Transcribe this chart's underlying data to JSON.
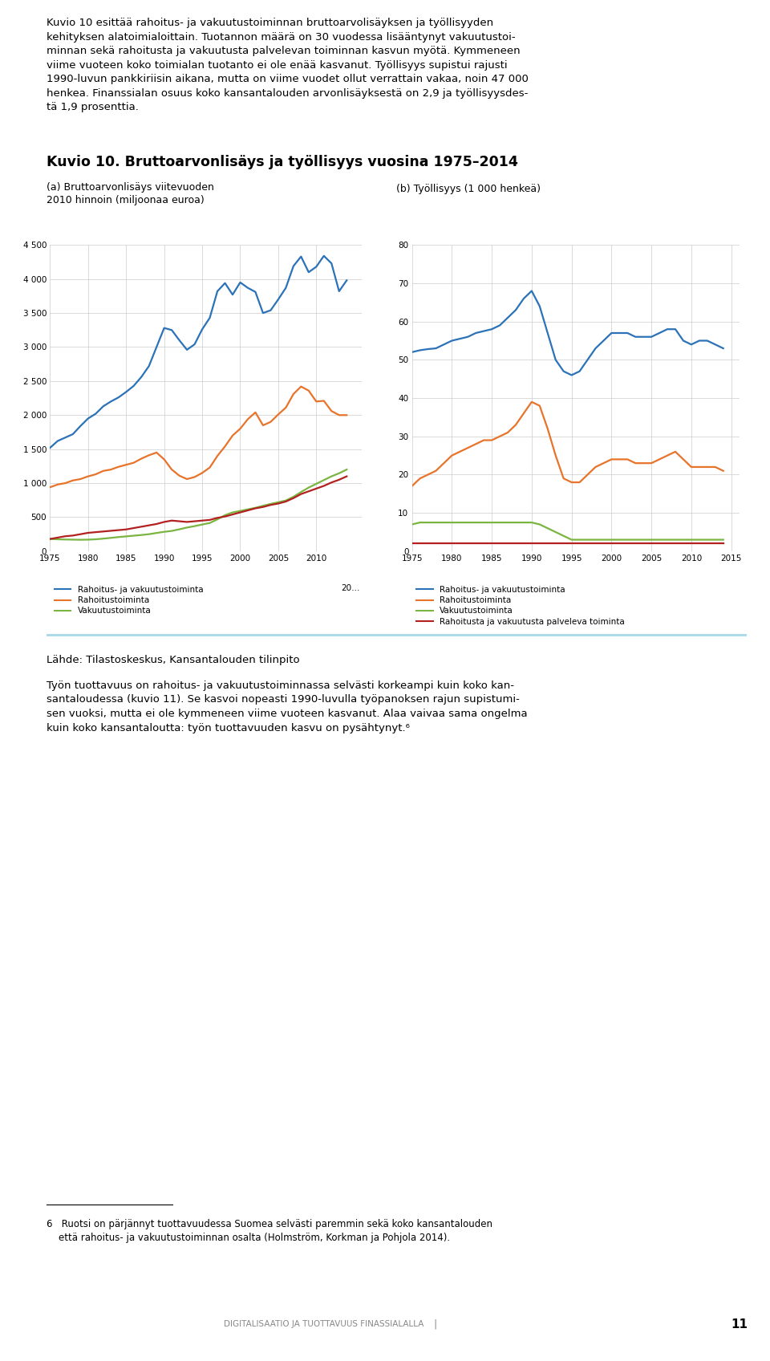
{
  "title": "Kuvio 10. Bruttoarvonlisäys ja työllisyys vuosina 1975–2014",
  "subtitle_a": "(a) Bruttoarvonlisäys viitevuoden\n2010 hinnoin (miljoonaa euroa)",
  "subtitle_b": "(b) Työllisyys (1 000 henkeä)",
  "years": [
    1975,
    1976,
    1977,
    1978,
    1979,
    1980,
    1981,
    1982,
    1983,
    1984,
    1985,
    1986,
    1987,
    1988,
    1989,
    1990,
    1991,
    1992,
    1993,
    1994,
    1995,
    1996,
    1997,
    1998,
    1999,
    2000,
    2001,
    2002,
    2003,
    2004,
    2005,
    2006,
    2007,
    2008,
    2009,
    2010,
    2011,
    2012,
    2013,
    2014
  ],
  "bva_total": [
    1520,
    1620,
    1670,
    1720,
    1840,
    1950,
    2020,
    2130,
    2200,
    2260,
    2340,
    2430,
    2560,
    2720,
    3000,
    3280,
    3250,
    3100,
    2960,
    3040,
    3260,
    3430,
    3820,
    3940,
    3770,
    3950,
    3870,
    3810,
    3500,
    3540,
    3700,
    3870,
    4190,
    4330,
    4100,
    4180,
    4340,
    4230,
    3820,
    3980
  ],
  "bva_rahoitus": [
    940,
    980,
    1000,
    1040,
    1060,
    1100,
    1130,
    1180,
    1200,
    1240,
    1270,
    1300,
    1360,
    1410,
    1450,
    1350,
    1200,
    1110,
    1060,
    1090,
    1150,
    1230,
    1400,
    1540,
    1700,
    1800,
    1940,
    2040,
    1850,
    1900,
    2010,
    2110,
    2310,
    2420,
    2360,
    2200,
    2210,
    2060,
    2000,
    2000
  ],
  "bva_vakuutus": [
    180,
    200,
    220,
    230,
    250,
    270,
    280,
    290,
    300,
    310,
    320,
    340,
    360,
    380,
    400,
    430,
    450,
    440,
    430,
    440,
    450,
    460,
    490,
    510,
    540,
    570,
    600,
    630,
    650,
    680,
    700,
    730,
    780,
    840,
    880,
    920,
    960,
    1010,
    1050,
    1100
  ],
  "bva_green": [
    180,
    175,
    172,
    170,
    168,
    170,
    175,
    185,
    196,
    208,
    218,
    228,
    238,
    250,
    268,
    285,
    298,
    322,
    348,
    368,
    392,
    415,
    468,
    530,
    570,
    592,
    615,
    638,
    668,
    695,
    720,
    745,
    800,
    870,
    935,
    990,
    1045,
    1100,
    1145,
    1200
  ],
  "empl_total": [
    52,
    52.5,
    52.8,
    53,
    54,
    55,
    55.5,
    56,
    57,
    57.5,
    58,
    59,
    61,
    63,
    66,
    68,
    64,
    57,
    50,
    47,
    46,
    47,
    50,
    53,
    55,
    57,
    57,
    57,
    56,
    56,
    56,
    57,
    58,
    58,
    55,
    54,
    55,
    55,
    54,
    53
  ],
  "empl_rahoitus": [
    17,
    19,
    20,
    21,
    23,
    25,
    26,
    27,
    28,
    29,
    29,
    30,
    31,
    33,
    36,
    39,
    38,
    32,
    25,
    19,
    18,
    18,
    20,
    22,
    23,
    24,
    24,
    24,
    23,
    23,
    23,
    24,
    25,
    26,
    24,
    22,
    22,
    22,
    22,
    21
  ],
  "empl_vakuutus": [
    7,
    7.5,
    7.5,
    7.5,
    7.5,
    7.5,
    7.5,
    7.5,
    7.5,
    7.5,
    7.5,
    7.5,
    7.5,
    7.5,
    7.5,
    7.5,
    7,
    6,
    5,
    4,
    3,
    3,
    3,
    3,
    3,
    3,
    3,
    3,
    3,
    3,
    3,
    3,
    3,
    3,
    3,
    3,
    3,
    3,
    3,
    3
  ],
  "empl_palveleva": [
    2,
    2,
    2,
    2,
    2,
    2,
    2,
    2,
    2,
    2,
    2,
    2,
    2,
    2,
    2,
    2,
    2,
    2,
    2,
    2,
    2,
    2,
    2,
    2,
    2,
    2,
    2,
    2,
    2,
    2,
    2,
    2,
    2,
    2,
    2,
    2,
    2,
    2,
    2,
    2
  ],
  "color_blue": "#2B72B8",
  "color_orange": "#E8732A",
  "color_green": "#7AB542",
  "color_red": "#B22020",
  "legend_a": [
    "Rahoitus- ja vakuutustoiminta",
    "Rahoitustoiminta",
    "Vakuutustoiminta"
  ],
  "legend_b": [
    "Rahoitus- ja vakuutustoiminta",
    "Rahoitustoiminta",
    "Vakuutustoiminta",
    "Rahoitusta ja vakuutusta palveleva toiminta"
  ],
  "header_para": "Kuvio 10 esittää rahoitus- ja vakuutustoiminnan bruttoarvolisäyksen ja työllisyyden kehityksen alatoimialoittain. Tuotannon määrä on 30 vuodessa lisääntynyt vakuutustoiminnan sekä rahoitusta ja vakuutusta palvelevan toiminnan kasvun myötä. Kymmeneen viime vuoteen koko toimialan tuotanto ei ole enää kasvanut. Työllisyys supistui rajusti 1990-luvun pankkiriisin aikana, mutta on viime vuodet ollut verrattain vakaa, noin 47 000 henkea. Finanssialan osuus koko kansantalouden arvonlisäyksestä on 2,9 ja työllisyydestä 1,9 prosenttia.",
  "footer_source": "Lähde: Tilastoskeskus, Kansantalouden tilinpito",
  "footer_text": "Työn tuottavuus on rahoitus- ja vakuutustoiminnassa selvästi korkeampi kuin koko kansantaloudessa (kuvio 11). Se kasvoi nopeasti 1990-luvulla työpanoksen rajun supistumisen vuoksi, mutta ei ole kymmeneen viime vuoteen kasvanut. Alaa vaivaa sama ongelma kuin koko kansantaloutta: työn tuottavuuden kasvu on pysähtynyt.",
  "footnote_num": "6",
  "footnote_text": "Ruotsi on pärjännyt tuottavuudessa Suomea selvästi paremmin sekä koko kansantalouden että rahoitus- ja vakuutustoiminnan osalta (Holmström, Korkman ja Pohjola 2014).",
  "page_label": "DIGITALISAATIO JA TUOTTAVUUS FINASSIALALLA",
  "page_number": "11",
  "divider_color": "#A8D8EA"
}
